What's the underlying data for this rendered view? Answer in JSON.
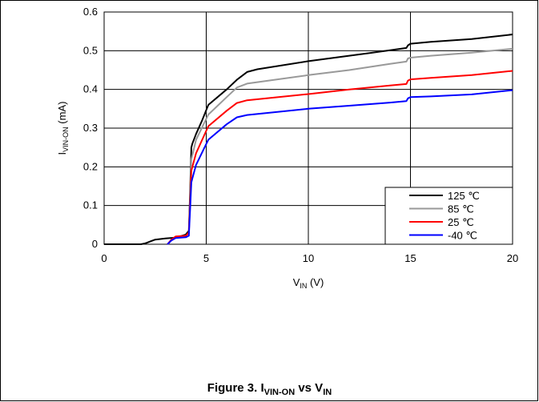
{
  "caption": {
    "prefix": "Figure 3. I",
    "sub1": "VIN-ON",
    "mid": " vs V",
    "sub2": "IN"
  },
  "chart_data": {
    "type": "line",
    "xlabel": {
      "main": "V",
      "sub": "IN",
      "suffix": " (V)"
    },
    "ylabel": {
      "main": "I",
      "sub": "VIN-ON",
      "suffix": " (mA)"
    },
    "xlim": [
      0,
      20
    ],
    "ylim": [
      0,
      0.6
    ],
    "xticks": [
      0,
      5,
      10,
      15,
      20
    ],
    "yticks": [
      0,
      0.1,
      0.2,
      0.3,
      0.4,
      0.5,
      0.6
    ],
    "xtick_labels": [
      "0",
      "5",
      "10",
      "15",
      "20"
    ],
    "ytick_labels": [
      "0",
      "0.1",
      "0.2",
      "0.3",
      "0.4",
      "0.5",
      "0.6"
    ],
    "grid": true,
    "legend_position": "bottom-right",
    "series": [
      {
        "name": "125 ℃",
        "color": "#000000",
        "x": [
          0,
          1.8,
          2.0,
          2.1,
          2.3,
          2.5,
          3.0,
          3.5,
          4.0,
          4.15,
          4.22,
          4.27,
          4.32,
          4.5,
          4.8,
          5.1,
          6.0,
          6.5,
          7.0,
          7.5,
          10.0,
          12.0,
          13.0,
          14.0,
          14.8,
          14.88,
          15.0,
          16.0,
          18.0,
          20.0
        ],
        "y": [
          0,
          0,
          0.002,
          0.004,
          0.008,
          0.012,
          0.015,
          0.017,
          0.025,
          0.035,
          0.15,
          0.25,
          0.26,
          0.285,
          0.32,
          0.36,
          0.4,
          0.425,
          0.445,
          0.452,
          0.473,
          0.487,
          0.494,
          0.501,
          0.507,
          0.514,
          0.518,
          0.523,
          0.53,
          0.542
        ]
      },
      {
        "name": "85 ℃",
        "color": "#999999",
        "x": [
          3.1,
          3.2,
          3.3,
          3.5,
          4.0,
          4.15,
          4.22,
          4.27,
          4.32,
          4.5,
          5.1,
          6.0,
          6.5,
          7.0,
          10.0,
          12.0,
          14.0,
          14.8,
          14.88,
          15.0,
          16.0,
          18.0,
          20.0
        ],
        "y": [
          0,
          0.006,
          0.012,
          0.019,
          0.022,
          0.03,
          0.13,
          0.22,
          0.23,
          0.27,
          0.335,
          0.38,
          0.405,
          0.415,
          0.437,
          0.45,
          0.466,
          0.472,
          0.48,
          0.482,
          0.487,
          0.495,
          0.505
        ]
      },
      {
        "name": "25 ℃",
        "color": "#ff0000",
        "x": [
          3.1,
          3.2,
          3.3,
          3.5,
          4.0,
          4.15,
          4.22,
          4.27,
          4.32,
          4.5,
          5.1,
          6.0,
          6.5,
          7.0,
          10.0,
          12.0,
          14.0,
          14.8,
          14.88,
          15.0,
          16.0,
          18.0,
          20.0
        ],
        "y": [
          0,
          0.006,
          0.012,
          0.02,
          0.022,
          0.03,
          0.12,
          0.19,
          0.2,
          0.235,
          0.305,
          0.345,
          0.365,
          0.372,
          0.388,
          0.4,
          0.41,
          0.414,
          0.423,
          0.426,
          0.43,
          0.437,
          0.448
        ]
      },
      {
        "name": "-40 ℃",
        "color": "#0000ff",
        "x": [
          3.1,
          3.2,
          3.3,
          3.5,
          4.0,
          4.15,
          4.22,
          4.27,
          4.32,
          4.5,
          5.1,
          6.0,
          6.5,
          7.0,
          10.0,
          12.0,
          14.0,
          14.8,
          14.88,
          15.0,
          16.0,
          18.0,
          20.0
        ],
        "y": [
          0,
          0.005,
          0.01,
          0.016,
          0.018,
          0.022,
          0.1,
          0.16,
          0.17,
          0.205,
          0.27,
          0.31,
          0.328,
          0.334,
          0.35,
          0.358,
          0.366,
          0.37,
          0.377,
          0.38,
          0.382,
          0.387,
          0.398
        ]
      }
    ]
  }
}
